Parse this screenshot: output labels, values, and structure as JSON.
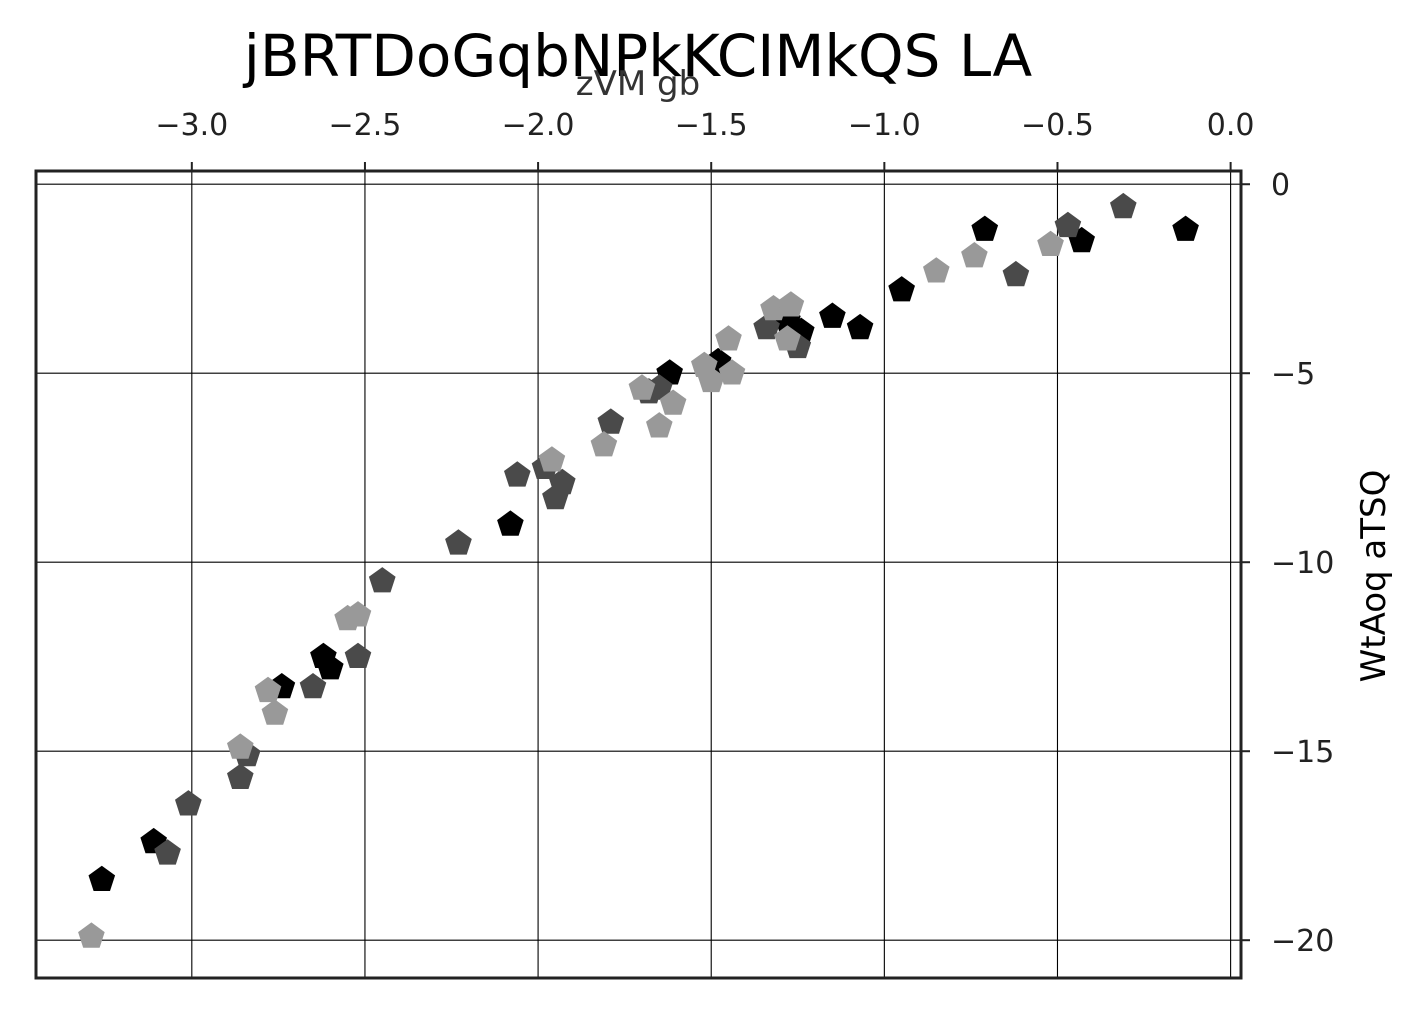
{
  "chart_data": {
    "type": "scatter",
    "title": "jBRTDoGqbNPkKCIMkQS LA",
    "xlabel": "zVM gb",
    "ylabel": "WtAoq  aTSQ",
    "xlim": [
      -3.45,
      0.03
    ],
    "ylim": [
      -21.0,
      0.35
    ],
    "x_ticks": [
      -3.0,
      -2.5,
      -2.0,
      -1.5,
      -1.0,
      -0.5,
      0.0
    ],
    "x_tick_labels": [
      "−3.0",
      "−2.5",
      "−2.0",
      "−1.5",
      "−1.0",
      "−0.5",
      "0.0"
    ],
    "y_ticks": [
      0,
      -5,
      -10,
      -15,
      -20
    ],
    "y_tick_labels": [
      "0",
      "−5",
      "−10",
      "−15",
      "−20"
    ],
    "x_axis_position": "top",
    "y_axis_position": "right",
    "grid": true,
    "marker": "pentagon",
    "colors": [
      "#000000",
      "#4a4a4a",
      "#999999"
    ],
    "series": [
      {
        "color": "#000000",
        "points": [
          [
            -3.26,
            -18.4
          ],
          [
            -3.11,
            -17.4
          ],
          [
            -2.74,
            -13.3
          ],
          [
            -2.62,
            -12.5
          ],
          [
            -2.6,
            -12.8
          ],
          [
            -2.08,
            -9.0
          ],
          [
            -1.62,
            -5.0
          ],
          [
            -1.48,
            -4.7
          ],
          [
            -1.28,
            -3.6
          ],
          [
            -1.24,
            -3.9
          ],
          [
            -1.15,
            -3.5
          ],
          [
            -1.07,
            -3.8
          ],
          [
            -0.95,
            -2.8
          ],
          [
            -0.71,
            -1.2
          ],
          [
            -0.43,
            -1.5
          ],
          [
            -0.13,
            -1.2
          ]
        ]
      },
      {
        "color": "#4a4a4a",
        "points": [
          [
            -3.07,
            -17.7
          ],
          [
            -3.01,
            -16.4
          ],
          [
            -2.86,
            -15.7
          ],
          [
            -2.84,
            -15.1
          ],
          [
            -2.65,
            -13.3
          ],
          [
            -2.52,
            -12.5
          ],
          [
            -2.45,
            -10.5
          ],
          [
            -2.23,
            -9.5
          ],
          [
            -2.06,
            -7.7
          ],
          [
            -1.98,
            -7.5
          ],
          [
            -1.95,
            -8.3
          ],
          [
            -1.93,
            -7.9
          ],
          [
            -1.79,
            -6.3
          ],
          [
            -1.68,
            -5.5
          ],
          [
            -1.65,
            -5.4
          ],
          [
            -1.34,
            -3.8
          ],
          [
            -1.25,
            -4.3
          ],
          [
            -0.62,
            -2.4
          ],
          [
            -0.47,
            -1.1
          ],
          [
            -0.31,
            -0.6
          ]
        ]
      },
      {
        "color": "#999999",
        "points": [
          [
            -3.29,
            -19.9
          ],
          [
            -2.86,
            -14.9
          ],
          [
            -2.78,
            -13.4
          ],
          [
            -2.76,
            -14.0
          ],
          [
            -2.55,
            -11.5
          ],
          [
            -2.52,
            -11.4
          ],
          [
            -1.96,
            -7.3
          ],
          [
            -1.81,
            -6.9
          ],
          [
            -1.7,
            -5.4
          ],
          [
            -1.65,
            -6.4
          ],
          [
            -1.61,
            -5.8
          ],
          [
            -1.52,
            -4.8
          ],
          [
            -1.5,
            -5.2
          ],
          [
            -1.45,
            -4.1
          ],
          [
            -1.44,
            -5.0
          ],
          [
            -1.32,
            -3.3
          ],
          [
            -1.28,
            -4.1
          ],
          [
            -1.27,
            -3.2
          ],
          [
            -0.85,
            -2.3
          ],
          [
            -0.74,
            -1.9
          ],
          [
            -0.52,
            -1.6
          ]
        ]
      }
    ]
  }
}
